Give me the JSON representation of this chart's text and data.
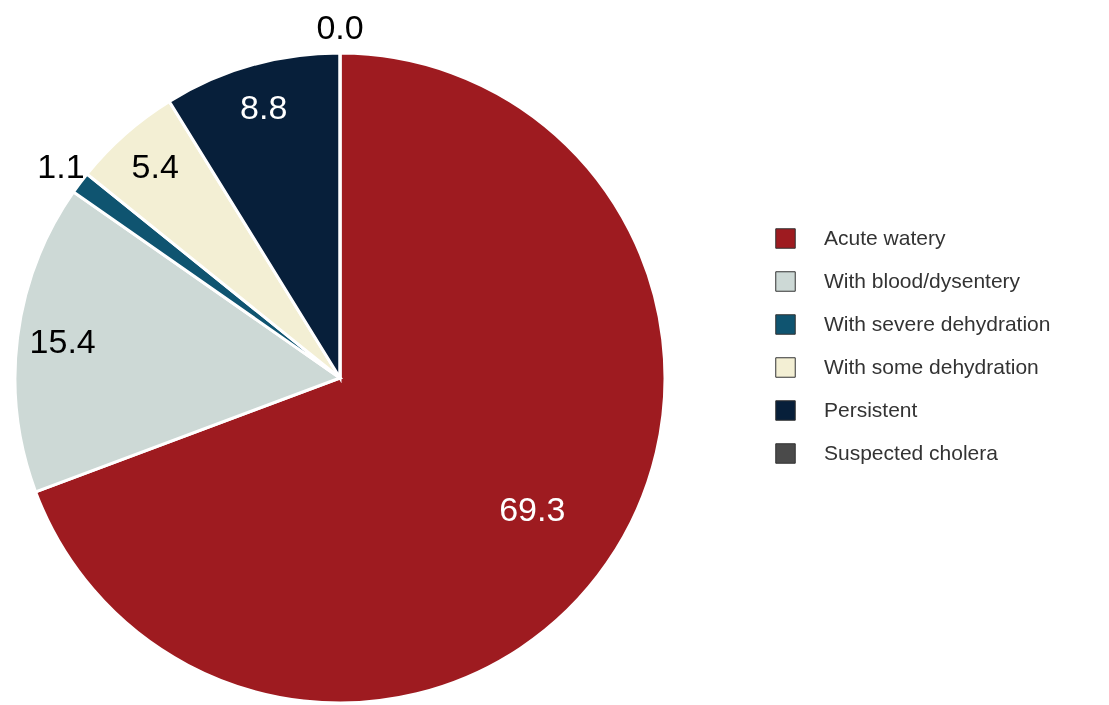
{
  "chart_data": {
    "type": "pie",
    "categories": [
      "Acute watery",
      "With blood/dysentery",
      "With severe dehydration",
      "With some dehydration",
      "Persistent",
      "Suspected cholera"
    ],
    "values": [
      69.3,
      15.4,
      1.1,
      5.4,
      8.8,
      0.0
    ],
    "colors": [
      "#9e1b20",
      "#cdd9d6",
      "#0f5470",
      "#f3efd4",
      "#071f3a",
      "#4a4a4a"
    ],
    "value_labels": [
      "69.3",
      "15.4",
      "1.1",
      "5.4",
      "8.8",
      "0.0"
    ],
    "legend": "right"
  }
}
